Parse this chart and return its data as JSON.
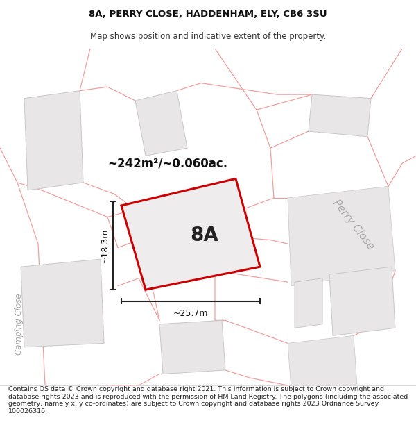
{
  "title_line1": "8A, PERRY CLOSE, HADDENHAM, ELY, CB6 3SU",
  "title_line2": "Map shows position and indicative extent of the property.",
  "footer_text": "Contains OS data © Crown copyright and database right 2021. This information is subject to Crown copyright and database rights 2023 and is reproduced with the permission of HM Land Registry. The polygons (including the associated geometry, namely x, y co-ordinates) are subject to Crown copyright and database rights 2023 Ordnance Survey 100026316.",
  "area_label": "~242m²/~0.060ac.",
  "label_8A": "8A",
  "dim_height": "~18.3m",
  "dim_width": "~25.7m",
  "street_label": "Perry Close",
  "side_label": "Camping Close",
  "map_bg": "#f7f5f5",
  "plot_outline_color": "#cc0000",
  "road_color": "#f0a0a0",
  "building_fill": "#e8e6e6",
  "building_edge": "#c8c8c8",
  "dim_line_color": "#222222",
  "street_label_color": "#aaaaaa",
  "title_fontsize": 9.5,
  "sub_fontsize": 8.5,
  "footer_fontsize": 6.8
}
